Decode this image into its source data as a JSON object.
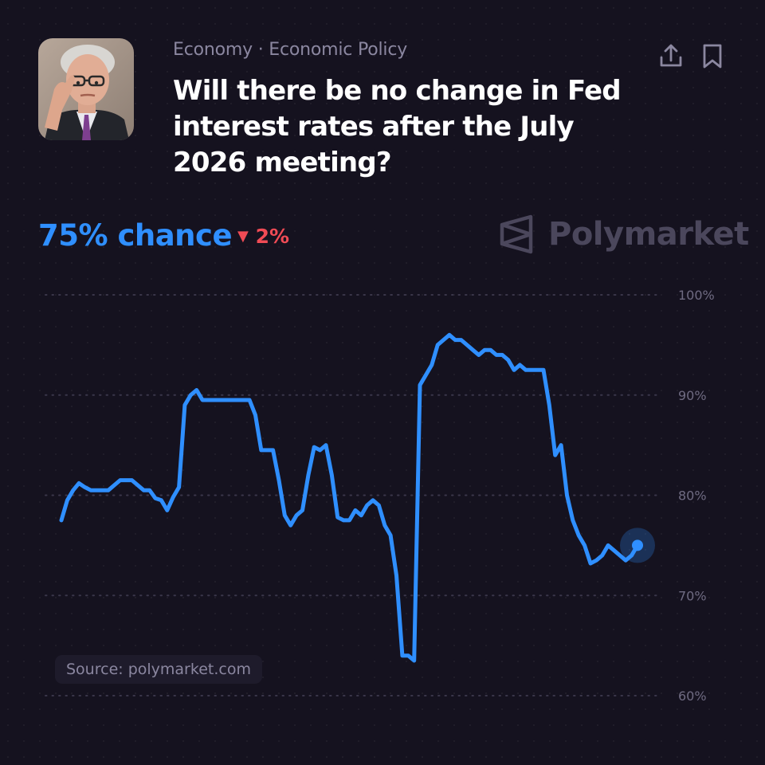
{
  "header": {
    "category": "Economy · Economic Policy",
    "title": "Will there be no change in Fed interest rates after the July 2026 meeting?"
  },
  "market": {
    "chance_label": "75% chance",
    "change_label": "2%",
    "change_direction": "down"
  },
  "brand": {
    "name": "Polymarket"
  },
  "source": {
    "label": "Source: polymarket.com"
  },
  "colors": {
    "background": "#15121f",
    "line": "#2f8fff",
    "negative": "#f04b55",
    "muted": "#8b87a0"
  },
  "icons": {
    "share": "share-icon",
    "bookmark": "bookmark-icon"
  },
  "chart_data": {
    "type": "line",
    "ylim": [
      60,
      100
    ],
    "y_ticks": [
      100,
      90,
      80,
      70,
      60
    ],
    "y_tick_labels": [
      "100%",
      "90%",
      "80%",
      "70%",
      "60%"
    ],
    "y_axis_side": "right",
    "grid": true,
    "grid_style": "dotted",
    "series": [
      {
        "values": [
          77.5,
          79.5,
          80.5,
          81.2,
          80.8,
          80.5,
          80.5,
          80.5,
          80.5,
          81.0,
          81.5,
          81.5,
          81.5,
          81.0,
          80.5,
          80.5,
          79.7,
          79.5,
          78.5,
          79.8,
          80.8,
          89.0,
          90.0,
          90.5,
          89.5,
          89.5,
          89.5,
          89.5,
          89.5,
          89.5,
          89.5,
          89.5,
          89.5,
          88.0,
          84.5,
          84.5,
          84.5,
          81.5,
          78.0,
          77.0,
          78.0,
          78.5,
          82.0,
          84.8,
          84.5,
          85.0,
          82.0,
          77.8,
          77.5,
          77.5,
          78.5,
          78.0,
          79.0,
          79.5,
          79.0,
          77.0,
          76.0,
          72.0,
          64.0,
          64.0,
          63.5,
          91.0,
          92.0,
          93.0,
          95.0,
          95.5,
          96.0,
          95.5,
          95.5,
          95.0,
          94.5,
          94.0,
          94.5,
          94.5,
          94.0,
          94.0,
          93.5,
          92.5,
          93.0,
          92.5,
          92.5,
          92.5,
          92.5,
          89.0,
          84.0,
          85.0,
          80.0,
          77.5,
          76.0,
          75.0,
          73.2,
          73.5,
          74.0,
          75.0,
          74.5,
          74.0,
          73.5,
          74.0,
          75.0
        ]
      }
    ]
  }
}
